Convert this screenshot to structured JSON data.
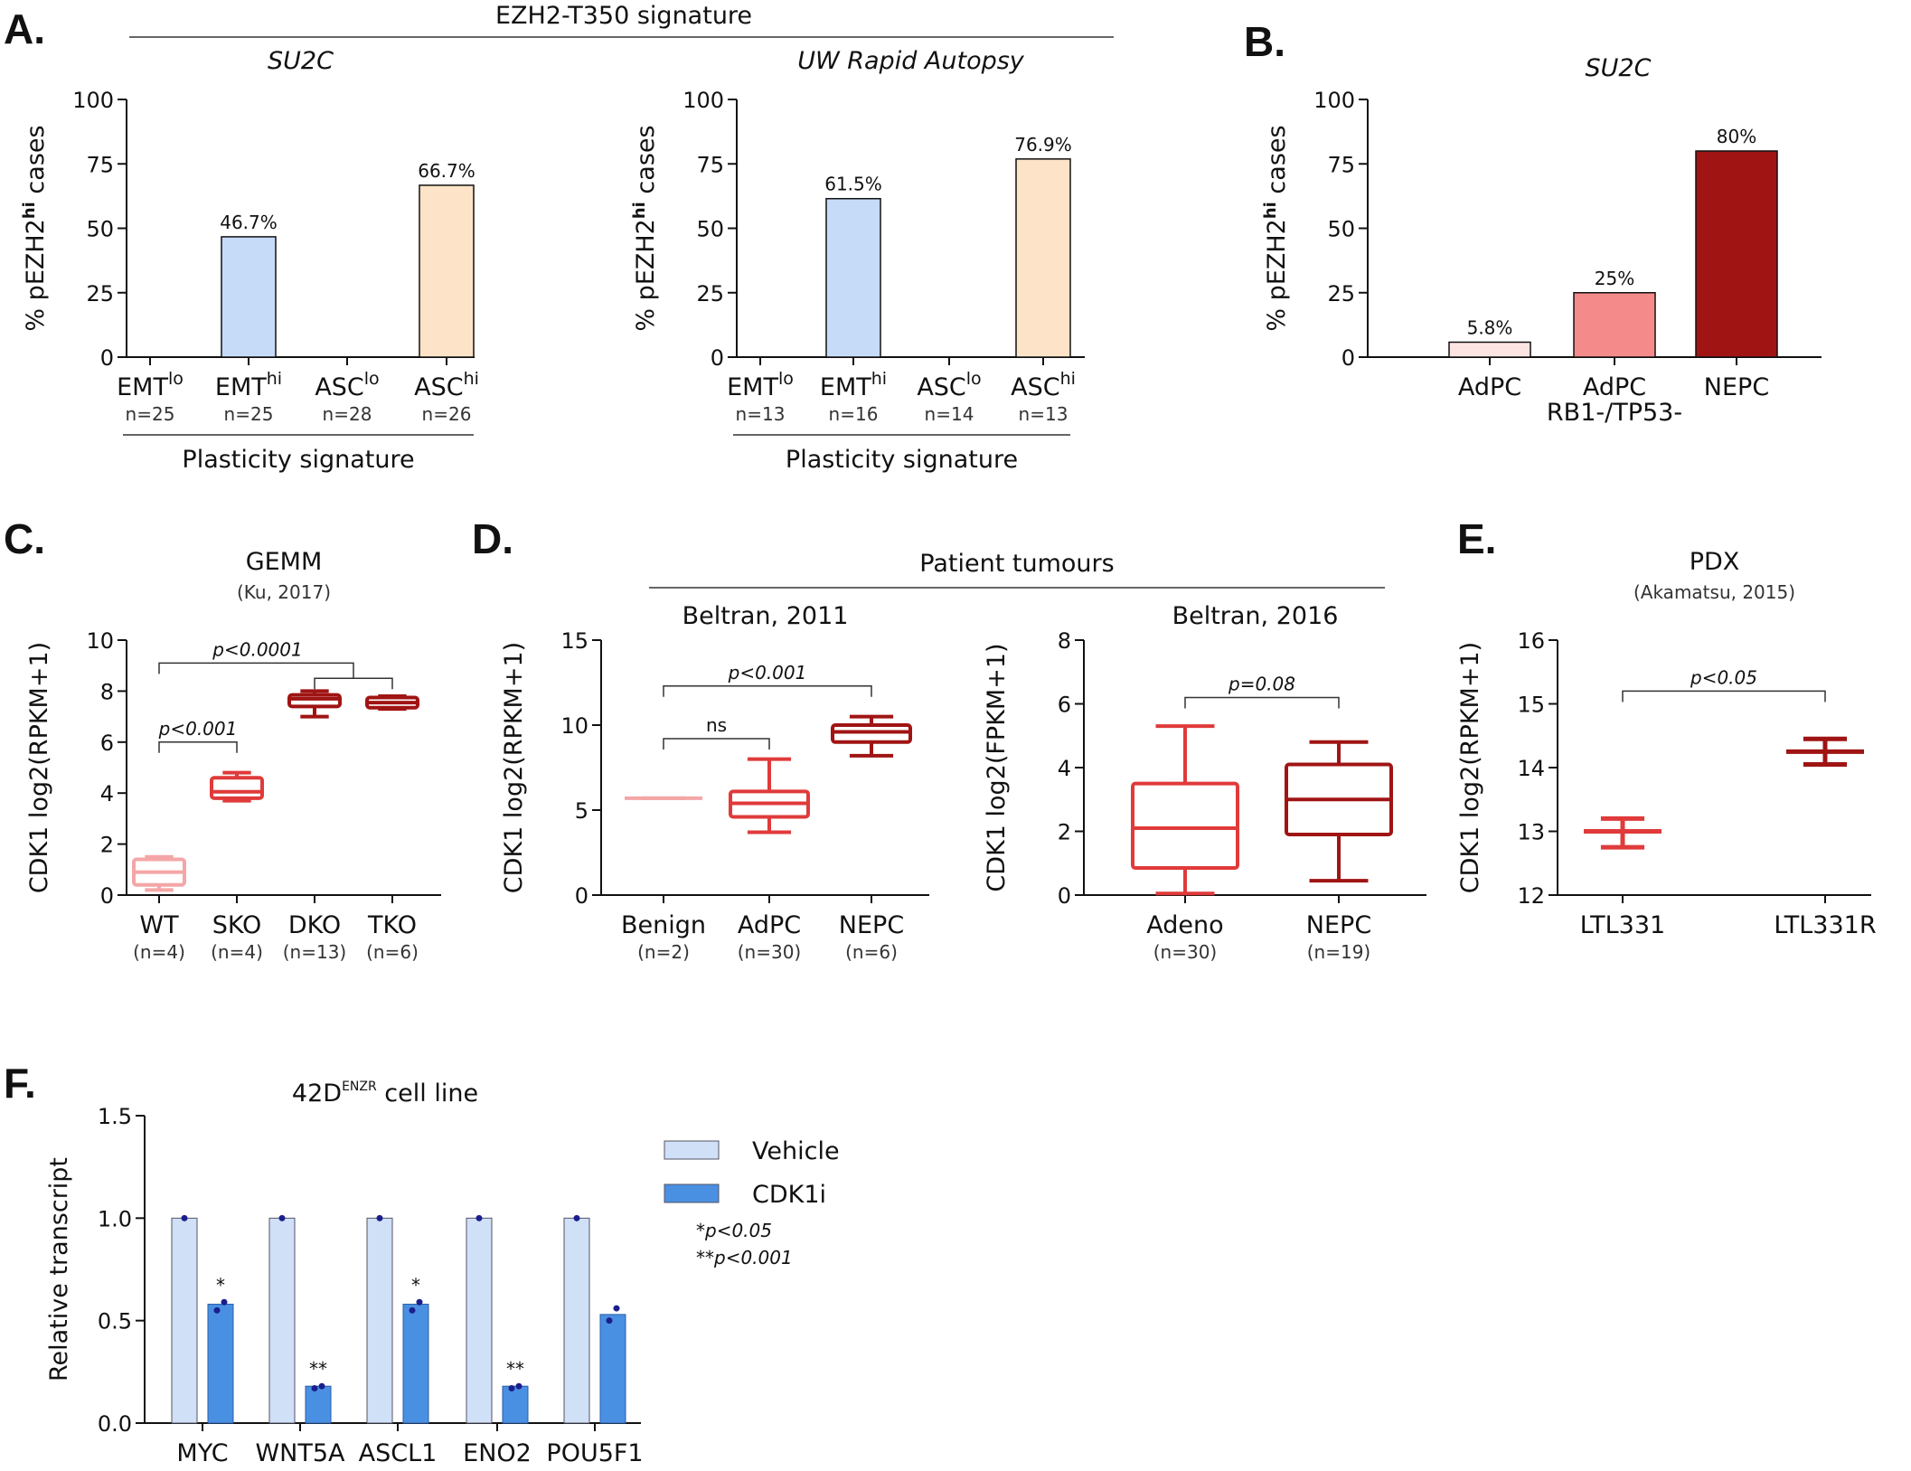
{
  "panels": {
    "A": "A.",
    "B": "B.",
    "C": "C.",
    "D": "D.",
    "E": "E.",
    "F": "F."
  },
  "colors": {
    "light_blue": "#c6dbf7",
    "peach": "#fde3c7",
    "pale_pink": "#fbe4e2",
    "salmon": "#f58a8a",
    "dark_red": "#a01414",
    "light_pink_line": "#f4a6a6",
    "mid_red": "#e03a3a",
    "vehicle": "#cfe0f7",
    "cdk1i": "#4a90e2",
    "dot": "#1a1f8c"
  },
  "A_header": "EZH2-T350 signature",
  "D_header": "Patient tumours",
  "chart_data": [
    {
      "id": "A1",
      "type": "bar",
      "title": "SU2C",
      "title_style": "italic",
      "ylabel": "% pEZH2hi cases",
      "ylim": [
        0,
        100
      ],
      "yticks": [
        "0",
        "25",
        "50",
        "75",
        "100"
      ],
      "categories": [
        {
          "label": "EMT",
          "sup": "lo",
          "n": "n=25",
          "value": 0,
          "label_text": "",
          "color": "light_blue"
        },
        {
          "label": "EMT",
          "sup": "hi",
          "n": "n=25",
          "value": 46.7,
          "label_text": "46.7%",
          "color": "light_blue"
        },
        {
          "label": "ASC",
          "sup": "lo",
          "n": "n=28",
          "value": 0,
          "label_text": "",
          "color": "peach"
        },
        {
          "label": "ASC",
          "sup": "hi",
          "n": "n=26",
          "value": 66.7,
          "label_text": "66.7%",
          "color": "peach"
        }
      ],
      "group_label": "Plasticity signature"
    },
    {
      "id": "A2",
      "type": "bar",
      "title": "UW Rapid Autopsy",
      "title_style": "italic",
      "ylabel": "% pEZH2hi cases",
      "ylim": [
        0,
        100
      ],
      "yticks": [
        "0",
        "25",
        "50",
        "75",
        "100"
      ],
      "categories": [
        {
          "label": "EMT",
          "sup": "lo",
          "n": "n=13",
          "value": 0,
          "label_text": "",
          "color": "light_blue"
        },
        {
          "label": "EMT",
          "sup": "hi",
          "n": "n=16",
          "value": 61.5,
          "label_text": "61.5%",
          "color": "light_blue"
        },
        {
          "label": "ASC",
          "sup": "lo",
          "n": "n=14",
          "value": 0,
          "label_text": "",
          "color": "peach"
        },
        {
          "label": "ASC",
          "sup": "hi",
          "n": "n=13",
          "value": 76.9,
          "label_text": "76.9%",
          "color": "peach"
        }
      ],
      "group_label": "Plasticity signature"
    },
    {
      "id": "B",
      "type": "bar",
      "title": "SU2C",
      "title_style": "italic",
      "ylabel": "% pEZH2hi cases",
      "ylim": [
        0,
        100
      ],
      "yticks": [
        "0",
        "25",
        "50",
        "75",
        "100"
      ],
      "categories": [
        {
          "label": "AdPC",
          "label2": "",
          "value": 5.8,
          "label_text": "5.8%",
          "color": "pale_pink"
        },
        {
          "label": "AdPC",
          "label2": "RB1-/TP53-",
          "value": 25,
          "label_text": "25%",
          "color": "salmon"
        },
        {
          "label": "NEPC",
          "label2": "",
          "value": 80,
          "label_text": "80%",
          "color": "dark_red"
        }
      ]
    },
    {
      "id": "C",
      "type": "box",
      "title": "GEMM",
      "subtitle": "(Ku, 2017)",
      "ylabel": "CDK1 log2(RPKM+1)",
      "ylim": [
        0,
        10
      ],
      "yticks": [
        "0",
        "2",
        "4",
        "6",
        "8",
        "10"
      ],
      "categories": [
        {
          "label": "WT",
          "n": "(n=4)",
          "min": 0.2,
          "q1": 0.4,
          "med": 0.9,
          "q3": 1.4,
          "max": 1.5,
          "color": "light_pink_line"
        },
        {
          "label": "SKO",
          "n": "(n=4)",
          "min": 3.7,
          "q1": 3.8,
          "med": 4.05,
          "q3": 4.6,
          "max": 4.8,
          "color": "mid_red"
        },
        {
          "label": "DKO",
          "n": "(n=13)",
          "min": 7.0,
          "q1": 7.4,
          "med": 7.7,
          "q3": 7.85,
          "max": 8.0,
          "color": "dark_red"
        },
        {
          "label": "TKO",
          "n": "(n=6)",
          "min": 7.3,
          "q1": 7.35,
          "med": 7.55,
          "q3": 7.75,
          "max": 7.8,
          "color": "dark_red"
        }
      ],
      "annotations": [
        {
          "text": "p<0.001",
          "from": 0,
          "to": 1,
          "y": 6.0
        },
        {
          "text": "p<0.0001",
          "from": 0,
          "to": 3,
          "y": 9.1,
          "inner_from": 2,
          "inner_y": 8.5
        }
      ]
    },
    {
      "id": "D1",
      "type": "box",
      "title": "Beltran, 2011",
      "ylabel": "CDK1 log2(RPKM+1)",
      "ylim": [
        0,
        15
      ],
      "yticks": [
        "0",
        "5",
        "10",
        "15"
      ],
      "categories": [
        {
          "label": "Benign",
          "n": "(n=2)",
          "min": 5.7,
          "q1": 5.7,
          "med": 5.7,
          "q3": 5.7,
          "max": 5.7,
          "color": "light_pink_line"
        },
        {
          "label": "AdPC",
          "n": "(n=30)",
          "min": 3.7,
          "q1": 4.6,
          "med": 5.4,
          "q3": 6.1,
          "max": 8.0,
          "color": "mid_red"
        },
        {
          "label": "NEPC",
          "n": "(n=6)",
          "min": 8.2,
          "q1": 9.0,
          "med": 9.6,
          "q3": 10.0,
          "max": 10.5,
          "color": "dark_red"
        }
      ],
      "annotations": [
        {
          "text": "ns",
          "from": 0,
          "to": 1,
          "y": 9.2
        },
        {
          "text": "p<0.001",
          "from": 0,
          "to": 2,
          "y": 12.3
        }
      ]
    },
    {
      "id": "D2",
      "type": "box",
      "title": "Beltran, 2016",
      "ylabel": "CDK1 log2(FPKM+1)",
      "ylim": [
        0,
        8
      ],
      "yticks": [
        "0",
        "2",
        "4",
        "6",
        "8"
      ],
      "categories": [
        {
          "label": "Adeno",
          "n": "(n=30)",
          "min": 0.05,
          "q1": 0.85,
          "med": 2.1,
          "q3": 3.5,
          "max": 5.3,
          "color": "mid_red"
        },
        {
          "label": "NEPC",
          "n": "(n=19)",
          "min": 0.45,
          "q1": 1.9,
          "med": 3.0,
          "q3": 4.1,
          "max": 4.8,
          "color": "dark_red"
        }
      ],
      "annotations": [
        {
          "text": "p=0.08",
          "from": 0,
          "to": 1,
          "y": 6.2
        }
      ]
    },
    {
      "id": "E",
      "type": "box",
      "title": "PDX",
      "subtitle": "(Akamatsu, 2015)",
      "ylabel": "CDK1 log2(RPKM+1)",
      "ylim": [
        12,
        16
      ],
      "yticks": [
        "12",
        "13",
        "14",
        "15",
        "16"
      ],
      "categories": [
        {
          "label": "LTL331",
          "n": "",
          "min": 12.75,
          "q1": 13.0,
          "med": 13.0,
          "q3": 13.0,
          "max": 13.2,
          "color": "mid_red"
        },
        {
          "label": "LTL331R",
          "n": "",
          "min": 14.05,
          "q1": 14.25,
          "med": 14.25,
          "q3": 14.25,
          "max": 14.45,
          "color": "dark_red"
        }
      ],
      "annotations": [
        {
          "text": "p<0.05",
          "from": 0,
          "to": 1,
          "y": 15.2
        }
      ]
    },
    {
      "id": "F",
      "type": "bar",
      "title": "42D",
      "title_sup": "ENZR",
      "title_suffix": " cell line",
      "ylabel": "Relative transcript",
      "ylim": [
        0,
        1.5
      ],
      "yticks": [
        "0.0",
        "0.5",
        "1.0",
        "1.5"
      ],
      "categories": [
        "MYC",
        "WNT5A",
        "ASCL1",
        "ENO2",
        "POU5F1"
      ],
      "series": [
        {
          "name": "Vehicle",
          "values": [
            1.0,
            1.0,
            1.0,
            1.0,
            1.0
          ],
          "color": "vehicle"
        },
        {
          "name": "CDK1i",
          "values": [
            0.58,
            0.18,
            0.58,
            0.18,
            0.53
          ],
          "color": "cdk1i"
        }
      ],
      "points": [
        [
          0.55,
          0.59
        ],
        [
          0.17,
          0.18
        ],
        [
          0.55,
          0.59
        ],
        [
          0.17,
          0.18
        ],
        [
          0.5,
          0.56
        ]
      ],
      "significance": [
        "*",
        "**",
        "*",
        "**",
        ""
      ],
      "legend_notes": [
        "*p<0.05",
        "**p<0.001"
      ]
    }
  ]
}
